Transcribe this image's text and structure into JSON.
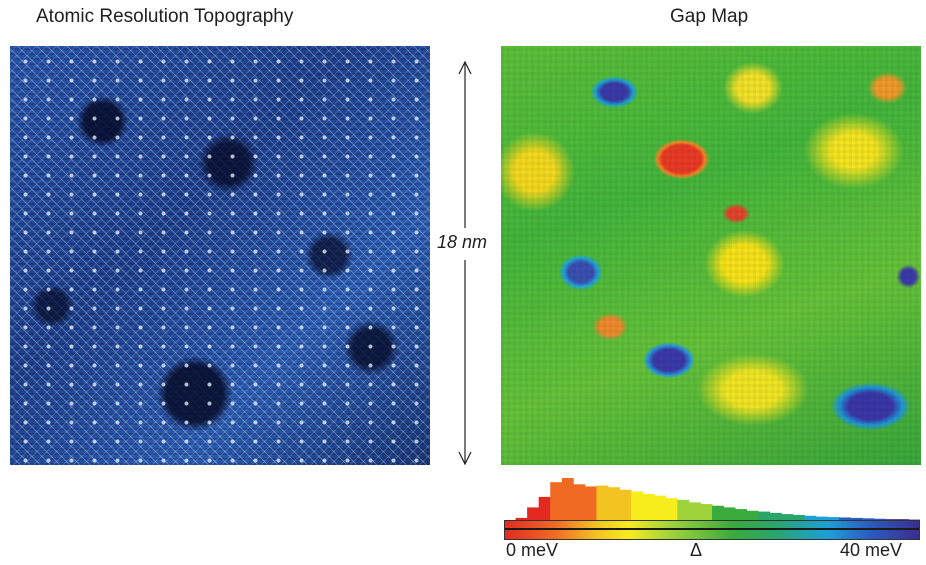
{
  "left_panel": {
    "title": "Atomic Resolution Topography"
  },
  "right_panel": {
    "title": "Gap Map"
  },
  "scale_bar": {
    "label": "18 nm"
  },
  "colorbar": {
    "min_label": "0 meV",
    "mid_label": "Δ",
    "max_label": "40 meV",
    "colors": [
      "#e32a22",
      "#f06a24",
      "#f3c322",
      "#f7ec1c",
      "#9fd33c",
      "#3aab3c",
      "#2aa56a",
      "#1d9fd8",
      "#2a5cc0",
      "#3b2d8f"
    ]
  },
  "histogram": {
    "relative_heights": [
      0,
      0.05,
      0.3,
      0.55,
      0.9,
      1.0,
      0.85,
      0.8,
      0.82,
      0.78,
      0.72,
      0.68,
      0.62,
      0.58,
      0.52,
      0.48,
      0.42,
      0.38,
      0.34,
      0.3,
      0.26,
      0.22,
      0.2,
      0.17,
      0.14,
      0.12,
      0.1,
      0.08,
      0.07,
      0.06,
      0.05,
      0.04,
      0.03,
      0.02,
      0.02,
      0.01
    ]
  }
}
